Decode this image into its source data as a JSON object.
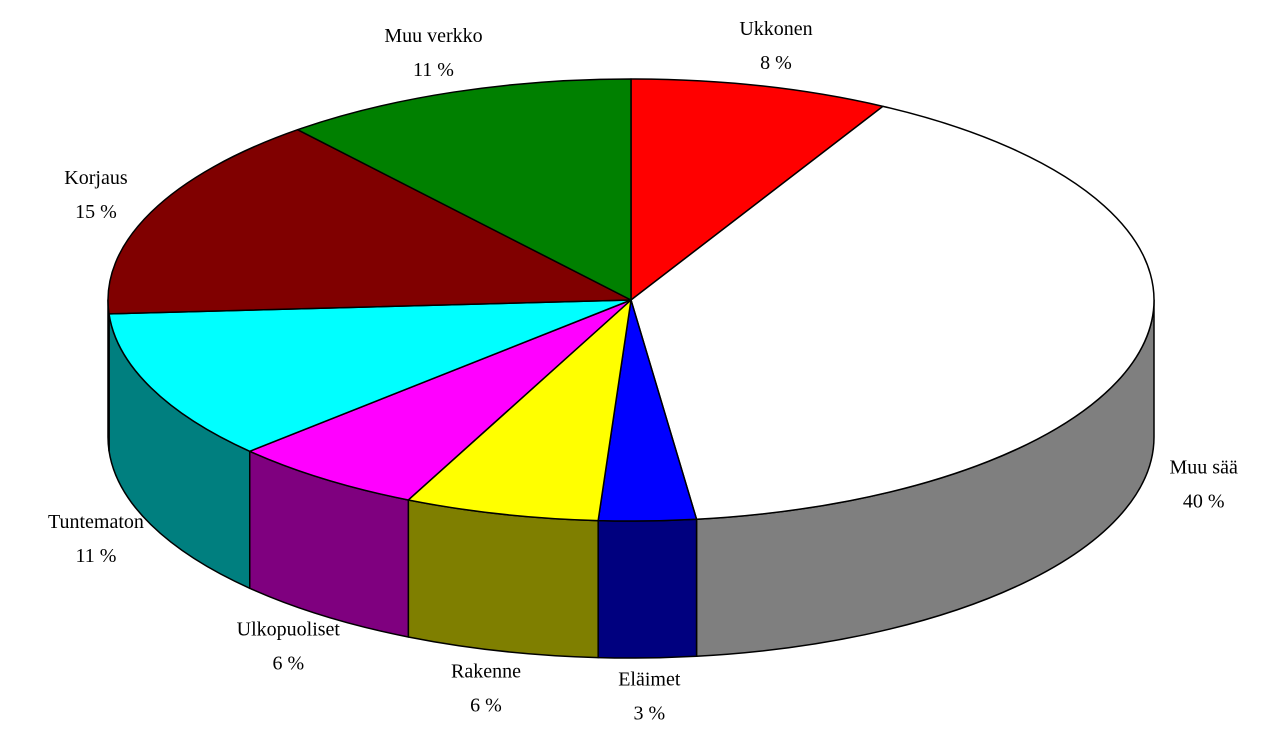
{
  "chart_data": {
    "type": "pie3d",
    "categories": [
      "Ukkonen",
      "Muu sää",
      "Eläimet",
      "Rakenne",
      "Ulkopuoliset",
      "Tuntematon",
      "Korjaus",
      "Muu verkko"
    ],
    "values": [
      8,
      40,
      3,
      6,
      6,
      11,
      15,
      11
    ],
    "value_labels": [
      "8 %",
      "40 %",
      "3 %",
      "6 %",
      "6 %",
      "11 %",
      "15 %",
      "11 %"
    ],
    "colors": [
      "#ff0000",
      "#ffffff",
      "#0000ff",
      "#ffff00",
      "#ff00ff",
      "#00ffff",
      "#800000",
      "#008000"
    ]
  }
}
